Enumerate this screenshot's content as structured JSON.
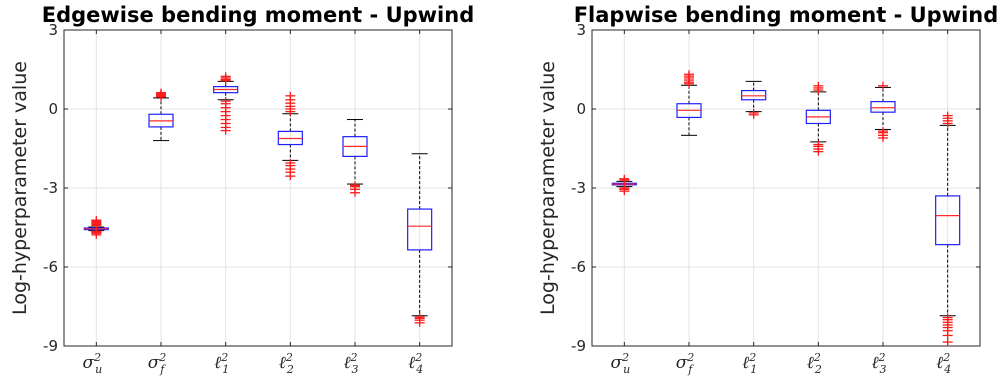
{
  "chart_data": [
    {
      "type": "box",
      "title": "Edgewise bending moment - Upwind",
      "ylabel": "Log-hyperparameter value",
      "ylim": [
        -9,
        3
      ],
      "yticks": [
        "-9",
        "-6",
        "-3",
        "0",
        "3"
      ],
      "grid": true,
      "categories": [
        {
          "base": "σ",
          "sub": "u",
          "sup": "2"
        },
        {
          "base": "σ",
          "sub": "f",
          "sup": "2"
        },
        {
          "base": "ℓ",
          "sub": "1",
          "sup": "2"
        },
        {
          "base": "ℓ",
          "sub": "2",
          "sup": "2"
        },
        {
          "base": "ℓ",
          "sub": "3",
          "sup": "2"
        },
        {
          "base": "ℓ",
          "sub": "4",
          "sup": "2"
        }
      ],
      "boxes": [
        {
          "whisker_low": -4.62,
          "q1": -4.58,
          "median": -4.55,
          "q3": -4.52,
          "whisker_high": -4.48,
          "outliers": [
            -4.78,
            -4.72,
            -4.68,
            -4.65,
            -4.42,
            -4.38,
            -4.34,
            -4.3,
            -4.26,
            -4.22
          ]
        },
        {
          "whisker_low": -1.2,
          "q1": -0.68,
          "median": -0.45,
          "q3": -0.2,
          "whisker_high": 0.42,
          "outliers": [
            0.46,
            0.5,
            0.54,
            0.58,
            0.62
          ]
        },
        {
          "whisker_low": 0.35,
          "q1": 0.62,
          "median": 0.74,
          "q3": 0.85,
          "whisker_high": 1.05,
          "outliers": [
            -0.82,
            -0.7,
            -0.55,
            -0.4,
            -0.25,
            -0.1,
            0.05,
            0.2,
            0.3,
            1.08,
            1.12,
            1.18,
            1.24
          ]
        },
        {
          "whisker_low": -1.95,
          "q1": -1.35,
          "median": -1.12,
          "q3": -0.85,
          "whisker_high": -0.18,
          "outliers": [
            -2.55,
            -2.4,
            -2.28,
            -2.15,
            -2.05,
            -0.1,
            0.0,
            0.1,
            0.22,
            0.35,
            0.5
          ]
        },
        {
          "whisker_low": -2.85,
          "q1": -1.8,
          "median": -1.42,
          "q3": -1.05,
          "whisker_high": -0.4,
          "outliers": [
            -3.18,
            -3.05,
            -2.95,
            -2.9
          ]
        },
        {
          "whisker_low": -7.85,
          "q1": -5.35,
          "median": -4.45,
          "q3": -3.8,
          "whisker_high": -1.7,
          "outliers": [
            -8.12,
            -8.02,
            -7.95,
            -7.9
          ]
        }
      ]
    },
    {
      "type": "box",
      "title": "Flapwise bending moment - Upwind",
      "ylabel": "Log-hyperparameter value",
      "ylim": [
        -9,
        3
      ],
      "yticks": [
        "-9",
        "-6",
        "-3",
        "0",
        "3"
      ],
      "grid": true,
      "categories": [
        {
          "base": "σ",
          "sub": "u",
          "sup": "2"
        },
        {
          "base": "σ",
          "sub": "f",
          "sup": "2"
        },
        {
          "base": "ℓ",
          "sub": "1",
          "sup": "2"
        },
        {
          "base": "ℓ",
          "sub": "2",
          "sup": "2"
        },
        {
          "base": "ℓ",
          "sub": "3",
          "sup": "2"
        },
        {
          "base": "ℓ",
          "sub": "4",
          "sup": "2"
        }
      ],
      "boxes": [
        {
          "whisker_low": -2.95,
          "q1": -2.88,
          "median": -2.85,
          "q3": -2.82,
          "whisker_high": -2.75,
          "outliers": [
            -3.12,
            -3.05,
            -3.0,
            -2.7,
            -2.65
          ]
        },
        {
          "whisker_low": -1.0,
          "q1": -0.32,
          "median": -0.05,
          "q3": 0.2,
          "whisker_high": 0.9,
          "outliers": [
            0.96,
            1.02,
            1.1,
            1.18,
            1.25,
            1.32
          ]
        },
        {
          "whisker_low": -0.1,
          "q1": 0.35,
          "median": 0.5,
          "q3": 0.7,
          "whisker_high": 1.05,
          "outliers": [
            -0.22,
            -0.15
          ]
        },
        {
          "whisker_low": -1.25,
          "q1": -0.55,
          "median": -0.3,
          "q3": -0.05,
          "whisker_high": 0.65,
          "outliers": [
            -1.62,
            -1.52,
            -1.42,
            -1.35,
            0.72,
            0.8,
            0.88
          ]
        },
        {
          "whisker_low": -0.78,
          "q1": -0.12,
          "median": 0.05,
          "q3": 0.28,
          "whisker_high": 0.82,
          "outliers": [
            -1.1,
            -1.0,
            -0.9,
            -0.84,
            0.88
          ]
        },
        {
          "whisker_low": -7.85,
          "q1": -5.15,
          "median": -4.05,
          "q3": -3.3,
          "whisker_high": -0.62,
          "outliers": [
            -8.85,
            -8.6,
            -8.42,
            -8.3,
            -8.2,
            -8.1,
            -8.0,
            -7.92,
            -0.55,
            -0.45,
            -0.35,
            -0.25
          ]
        }
      ]
    }
  ]
}
